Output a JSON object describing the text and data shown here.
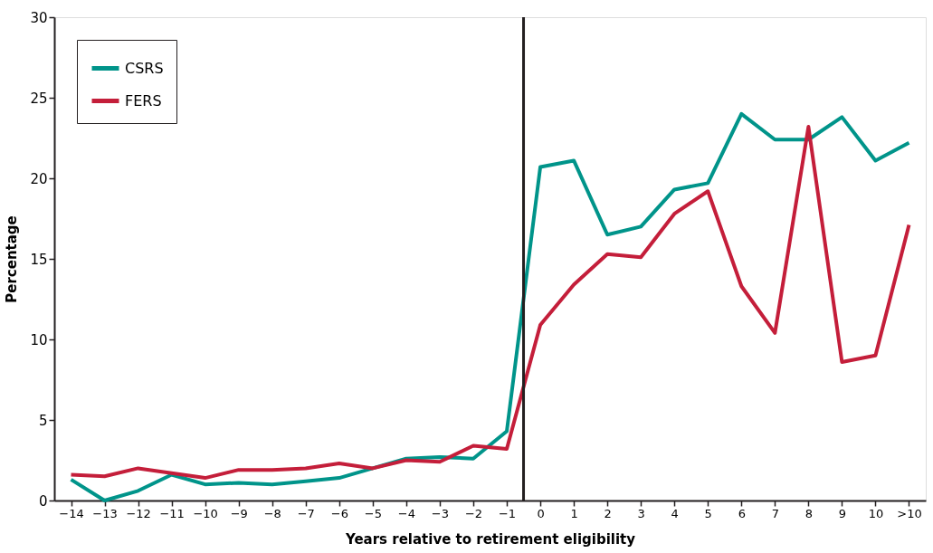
{
  "chart_data": {
    "type": "line",
    "xlabel": "Years relative to retirement eligibility",
    "ylabel": "Percentage",
    "x": [
      -14,
      -13,
      -12,
      -11,
      -10,
      -9,
      -8,
      -7,
      -6,
      -5,
      -4,
      -3,
      -2,
      -1,
      0,
      1,
      2,
      3,
      4,
      5,
      6,
      7,
      8,
      9,
      10,
      11
    ],
    "series": [
      {
        "name": "CSRS",
        "color": "#00948a",
        "values": [
          1.3,
          0.0,
          0.6,
          1.6,
          1.0,
          1.1,
          1.0,
          1.2,
          1.4,
          2.0,
          2.6,
          2.7,
          2.6,
          4.3,
          20.7,
          21.1,
          16.5,
          17.0,
          19.3,
          19.7,
          24.0,
          22.4,
          22.4,
          23.8,
          21.1,
          22.2
        ]
      },
      {
        "name": "FERS",
        "color": "#c41e3a",
        "values": [
          1.6,
          1.5,
          2.0,
          1.7,
          1.4,
          1.9,
          1.9,
          2.0,
          2.3,
          2.0,
          2.5,
          2.4,
          3.4,
          3.2,
          10.9,
          13.4,
          15.3,
          15.1,
          17.8,
          19.2,
          13.3,
          10.4,
          23.2,
          8.6,
          9.0,
          17.1
        ]
      }
    ],
    "xlim": [
      -14.5,
      11.5
    ],
    "xticks": [
      {
        "value": -14,
        "label": "−14"
      },
      {
        "value": -13,
        "label": "−13"
      },
      {
        "value": -12,
        "label": "−12"
      },
      {
        "value": -11,
        "label": "−11"
      },
      {
        "value": -10,
        "label": "−10"
      },
      {
        "value": -9,
        "label": "−9"
      },
      {
        "value": -8,
        "label": "−8"
      },
      {
        "value": -7,
        "label": "−7"
      },
      {
        "value": -6,
        "label": "−6"
      },
      {
        "value": -5,
        "label": "−5"
      },
      {
        "value": -4,
        "label": "−4"
      },
      {
        "value": -3,
        "label": "−3"
      },
      {
        "value": -2,
        "label": "−2"
      },
      {
        "value": -1,
        "label": "−1"
      },
      0,
      1,
      2,
      3,
      4,
      5,
      6,
      7,
      8,
      9,
      10,
      {
        "value": 11,
        "label": ">10"
      }
    ],
    "ylim": [
      0,
      30
    ],
    "yticks": [
      0,
      5,
      10,
      15,
      20,
      25,
      30
    ],
    "ref_lines": [
      {
        "axis": "x",
        "value": -0.5,
        "color": "#231f20"
      }
    ],
    "grid": false,
    "legend": "top left",
    "marker": "none",
    "line_style": "solid"
  }
}
